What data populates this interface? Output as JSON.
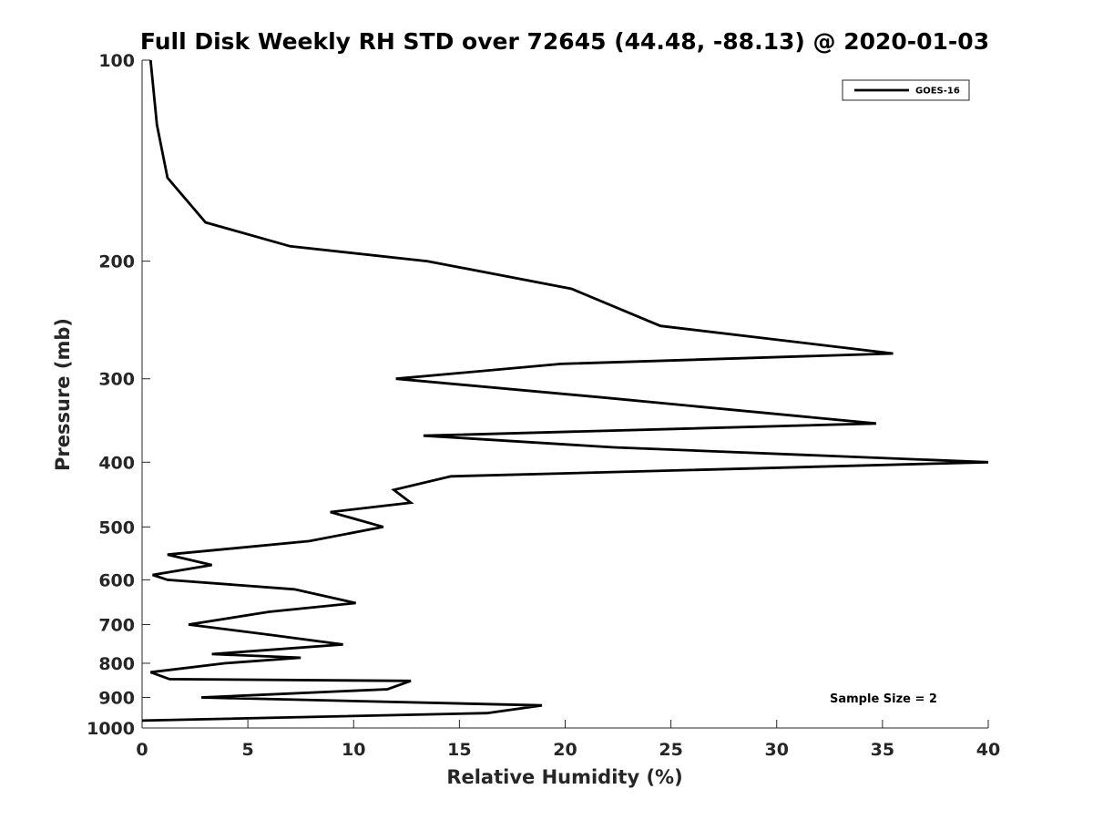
{
  "chart_data": {
    "type": "line",
    "title": "Full Disk Weekly RH STD over 72645 (44.48, -88.13) @ 2020-01-03",
    "xlabel": "Relative Humidity (%)",
    "ylabel": "Pressure (mb)",
    "xlim": [
      0,
      40
    ],
    "ylim": [
      100,
      1000
    ],
    "yscale": "log",
    "yreversed": true,
    "x_ticks": [
      0,
      5,
      10,
      15,
      20,
      25,
      30,
      35,
      40
    ],
    "y_ticks": [
      100,
      200,
      300,
      400,
      500,
      600,
      700,
      800,
      900,
      1000
    ],
    "grid": false,
    "legend": {
      "position": "top-right",
      "entries": [
        "GOES-16"
      ]
    },
    "annotation": "Sample Size = 2",
    "line_color": "#000000",
    "series": [
      {
        "name": "GOES-16",
        "points": [
          [
            0.4,
            100
          ],
          [
            0.7,
            125
          ],
          [
            1.2,
            150
          ],
          [
            3.0,
            175
          ],
          [
            7.0,
            190
          ],
          [
            13.5,
            200
          ],
          [
            20.3,
            220
          ],
          [
            24.5,
            250
          ],
          [
            35.5,
            275
          ],
          [
            19.8,
            285
          ],
          [
            12.0,
            300
          ],
          [
            21.8,
            320
          ],
          [
            34.7,
            350
          ],
          [
            13.3,
            365
          ],
          [
            22.3,
            380
          ],
          [
            40.0,
            400
          ],
          [
            14.6,
            420
          ],
          [
            11.9,
            440
          ],
          [
            12.7,
            460
          ],
          [
            8.9,
            475
          ],
          [
            11.4,
            500
          ],
          [
            7.9,
            525
          ],
          [
            1.2,
            550
          ],
          [
            3.3,
            570
          ],
          [
            0.5,
            590
          ],
          [
            1.2,
            600
          ],
          [
            7.2,
            620
          ],
          [
            10.1,
            650
          ],
          [
            6.0,
            670
          ],
          [
            2.2,
            700
          ],
          [
            6.0,
            725
          ],
          [
            9.5,
            750
          ],
          [
            3.3,
            775
          ],
          [
            7.5,
            785
          ],
          [
            3.9,
            800
          ],
          [
            0.4,
            825
          ],
          [
            1.3,
            845
          ],
          [
            12.7,
            850
          ],
          [
            11.6,
            875
          ],
          [
            2.8,
            900
          ],
          [
            18.9,
            925
          ],
          [
            16.3,
            950
          ],
          [
            0,
            975
          ]
        ]
      }
    ]
  }
}
